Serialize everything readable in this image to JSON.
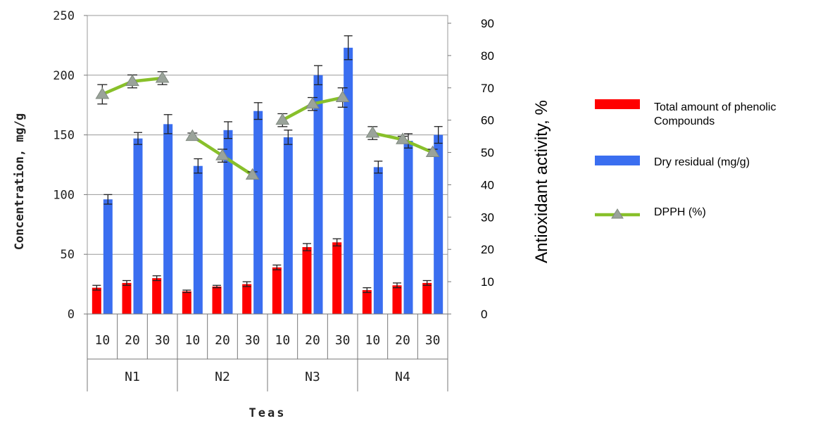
{
  "chart_data": {
    "type": "bar",
    "groups": [
      "N1",
      "N2",
      "N3",
      "N4"
    ],
    "subcategories": [
      "10",
      "20",
      "30"
    ],
    "xlabel": "Teas",
    "ylabel": "Concentration, mg/g",
    "y2label": "Antioxidant activity, %",
    "ylim": [
      0,
      250
    ],
    "y2lim": [
      0,
      90
    ],
    "yticks": [
      0,
      50,
      100,
      150,
      200,
      250
    ],
    "y2ticks": [
      0,
      10,
      20,
      30,
      40,
      50,
      60,
      70,
      80,
      90
    ],
    "grid": "horizontal",
    "legend_position": "right",
    "series": [
      {
        "name": "Total amount of phenolic Compounds",
        "kind": "bar",
        "axis": "left",
        "color": "#ff0000",
        "values": [
          22,
          26,
          30,
          19,
          23,
          25,
          39,
          56,
          60,
          20,
          24,
          26
        ],
        "errors": [
          2,
          2,
          2,
          1,
          1,
          2,
          2,
          3,
          3,
          2,
          2,
          2
        ]
      },
      {
        "name": "Dry residual (mg/g)",
        "kind": "bar",
        "axis": "left",
        "color": "#3a6ef0",
        "values": [
          96,
          147,
          159,
          124,
          154,
          170,
          148,
          200,
          223,
          123,
          145,
          150
        ],
        "errors": [
          4,
          5,
          8,
          6,
          7,
          7,
          6,
          8,
          10,
          5,
          6,
          7
        ]
      },
      {
        "name": "DPPH (%)",
        "kind": "line",
        "axis": "right",
        "color": "#88c02a",
        "marker": "triangle",
        "segments": [
          [
            0,
            1,
            2
          ],
          [
            3,
            4,
            5
          ],
          [
            6,
            7,
            8
          ],
          [
            9,
            10,
            11
          ]
        ],
        "values": [
          68,
          72,
          73,
          55,
          49,
          43,
          60,
          65,
          67,
          56,
          54,
          50
        ],
        "errors": [
          3,
          2,
          2,
          1,
          2,
          1,
          2,
          2,
          3,
          2,
          1,
          1
        ]
      }
    ]
  }
}
